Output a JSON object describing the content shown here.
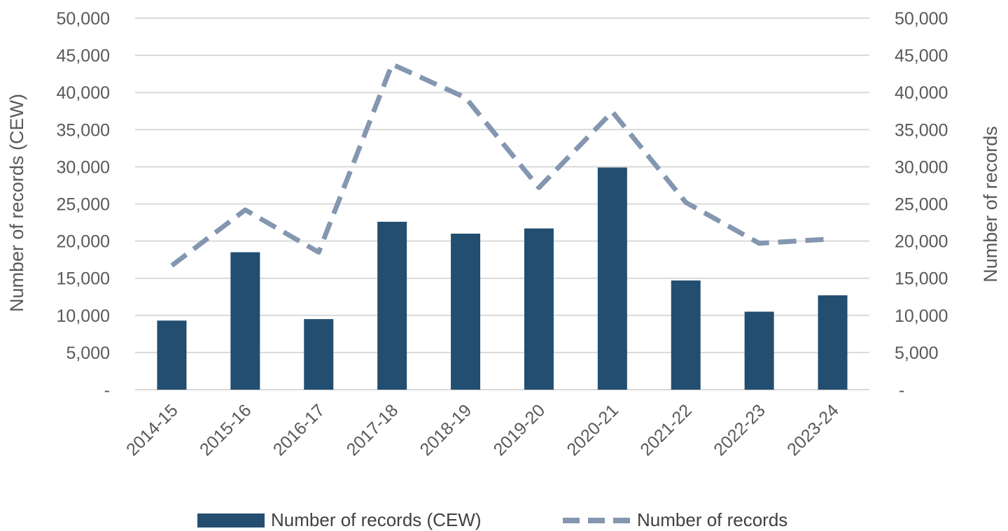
{
  "chart_data": {
    "type": "bar",
    "title": "",
    "categories": [
      "2014-15",
      "2015-16",
      "2016-17",
      "2017-18",
      "2018-19",
      "2019-20",
      "2020-21",
      "2021-22",
      "2022-23",
      "2023-24"
    ],
    "series": [
      {
        "name": "Number of records (CEW)",
        "type": "bar",
        "axis": "left",
        "color": "#234e70",
        "values": [
          9300,
          18500,
          9500,
          22600,
          21000,
          21700,
          29900,
          14700,
          10500,
          12700
        ]
      },
      {
        "name": "Number of records",
        "type": "line",
        "style": "dashed",
        "axis": "right",
        "color": "#8496b0",
        "values": [
          16700,
          24200,
          18500,
          43800,
          39300,
          27200,
          37400,
          25200,
          19700,
          20300
        ]
      }
    ],
    "ylabel_left": "Number of records (CEW)",
    "ylabel_right": "Number of records",
    "xlabel": "",
    "ylim": [
      0,
      50000
    ],
    "yticks": [
      "-",
      "5,000",
      "10,000",
      "15,000",
      "20,000",
      "25,000",
      "30,000",
      "35,000",
      "40,000",
      "45,000",
      "50,000"
    ],
    "grid": true,
    "legend_position": "bottom"
  },
  "colors": {
    "grid": "#d9d9d9",
    "text": "#595959"
  }
}
